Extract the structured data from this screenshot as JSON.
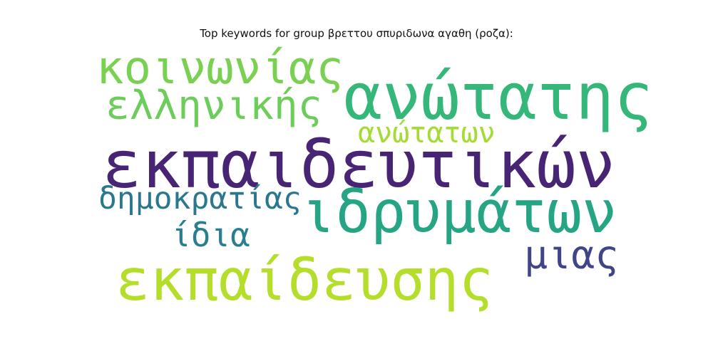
{
  "title": "Top keywords for group βρεττου σπυριδωνα αγαθη (ροζα):",
  "words": [
    {
      "id": "koinonias",
      "text": "κοινωνίας",
      "color": "#7ad151"
    },
    {
      "id": "ellinikis",
      "text": "ελληνικής",
      "color": "#6ccd5a"
    },
    {
      "id": "anotatis",
      "text": "ανώτατης",
      "color": "#35b779"
    },
    {
      "id": "anotaton",
      "text": "ανώτατων",
      "color": "#a5db36"
    },
    {
      "id": "ekpaideutikon",
      "text": "εκπαιδευτικών",
      "color": "#482475"
    },
    {
      "id": "dimokratias",
      "text": "δημοκρατίας",
      "color": "#2a788e"
    },
    {
      "id": "idrymaton",
      "text": "ιδρυμάτων",
      "color": "#25a584"
    },
    {
      "id": "idia",
      "text": "ίδια",
      "color": "#2a7f8e"
    },
    {
      "id": "mias",
      "text": "μιας",
      "color": "#414487"
    },
    {
      "id": "ekpaideusis",
      "text": "εκπαίδευσης",
      "color": "#b5de2b"
    }
  ]
}
